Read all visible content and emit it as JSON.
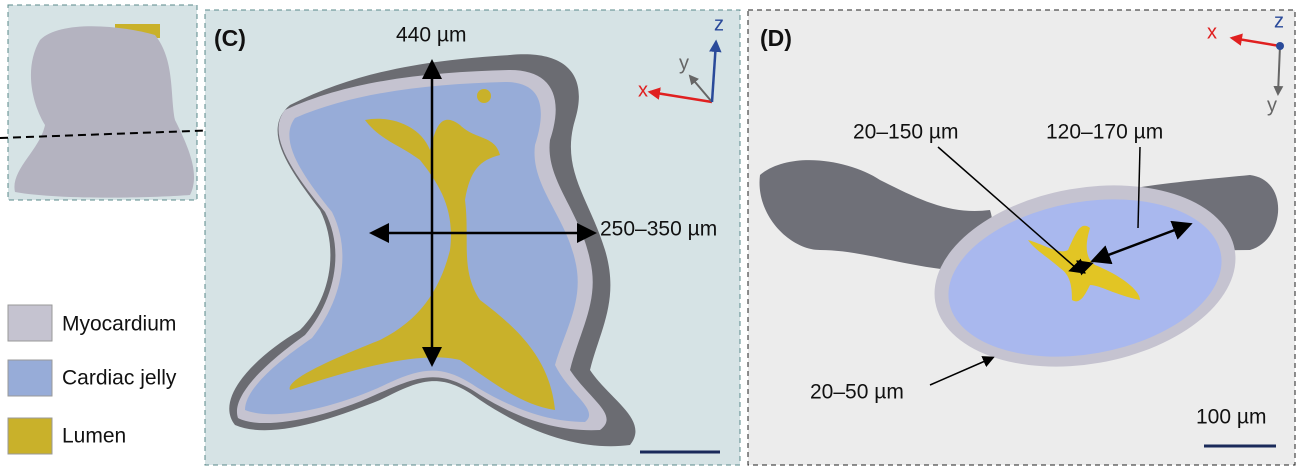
{
  "legend": [
    "Myocardium",
    "Cardiac jelly",
    "Lumen"
  ],
  "panel_c": {
    "label": "(C)",
    "height": "440 µm",
    "width": "250–350 µm",
    "axes": {
      "x": "x",
      "y": "y",
      "z": "z"
    }
  },
  "panel_d": {
    "label": "(D)",
    "lumen_width": "20–150 µm",
    "jelly_width": "120–170 µm",
    "myocardium_width": "20–50 µm",
    "scale_bar": "100 µm",
    "axes": {
      "x": "x",
      "y": "y",
      "z": "z"
    }
  }
}
